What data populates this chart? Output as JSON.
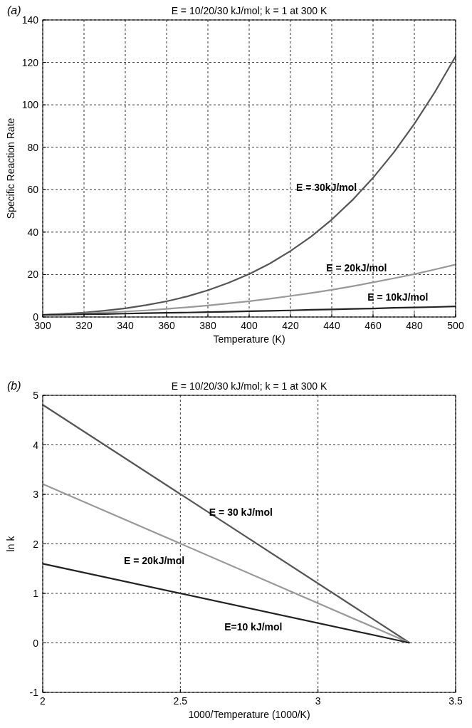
{
  "chart_data": [
    {
      "type": "line",
      "title": "E = 10/20/30 kJ/mol; k = 1 at 300 K",
      "xlabel": "Temperature (K)",
      "ylabel": "Specific Reaction Rate",
      "x": [
        300,
        310,
        320,
        330,
        340,
        350,
        360,
        370,
        380,
        390,
        400,
        410,
        420,
        430,
        440,
        450,
        460,
        470,
        480,
        490,
        500
      ],
      "series": [
        {
          "name": "E = 30kJ/mol",
          "color": "#555555",
          "values": [
            1,
            1.5,
            2.1,
            3,
            4.1,
            5.6,
            7.4,
            9.7,
            12.6,
            16.1,
            20.2,
            25.2,
            31.1,
            37.9,
            45.9,
            55.1,
            65.6,
            77.5,
            91,
            106.1,
            122.9
          ]
        },
        {
          "name": "E = 20kJ/mol",
          "color": "#999999",
          "values": [
            1,
            1.3,
            1.7,
            2.1,
            2.6,
            3.1,
            3.8,
            4.6,
            5.4,
            6.4,
            7.4,
            8.6,
            9.9,
            11.3,
            12.8,
            14.5,
            16.3,
            18.2,
            20.2,
            22.4,
            24.7
          ]
        },
        {
          "name": "E = 10kJ/mol",
          "color": "#222222",
          "values": [
            1,
            1.1,
            1.3,
            1.4,
            1.6,
            1.8,
            2,
            2.1,
            2.3,
            2.5,
            2.7,
            2.9,
            3.1,
            3.4,
            3.6,
            3.8,
            4,
            4.3,
            4.5,
            4.7,
            5
          ]
        }
      ],
      "xlim": [
        300,
        500
      ],
      "xticks": [
        300,
        320,
        340,
        360,
        380,
        400,
        420,
        440,
        460,
        480,
        500
      ],
      "ylim": [
        0,
        140
      ],
      "yticks": [
        0,
        20,
        40,
        60,
        80,
        100,
        120,
        140
      ],
      "grid": true,
      "line_style": "solid",
      "annotations": [
        "(a)"
      ]
    },
    {
      "type": "line",
      "title": "E = 10/20/30 kJ/mol; k = 1 at 300 K",
      "xlabel": "1000/Temperature (1000/K)",
      "ylabel": "ln k",
      "x": [
        2,
        3.333
      ],
      "series": [
        {
          "name": "E = 30 kJ/mol",
          "color": "#555555",
          "values": [
            4.81,
            0
          ]
        },
        {
          "name": "E = 20kJ/mol",
          "color": "#999999",
          "values": [
            3.21,
            0
          ]
        },
        {
          "name": "E=10 kJ/mol",
          "color": "#222222",
          "values": [
            1.6,
            0
          ]
        }
      ],
      "xlim": [
        2,
        3.5
      ],
      "xticks": [
        2,
        2.5,
        3,
        3.5
      ],
      "ylim": [
        -1,
        5
      ],
      "yticks": [
        -1,
        0,
        1,
        2,
        3,
        4,
        5
      ],
      "grid": true,
      "line_style": "solid",
      "annotations": [
        "(b)"
      ]
    }
  ]
}
